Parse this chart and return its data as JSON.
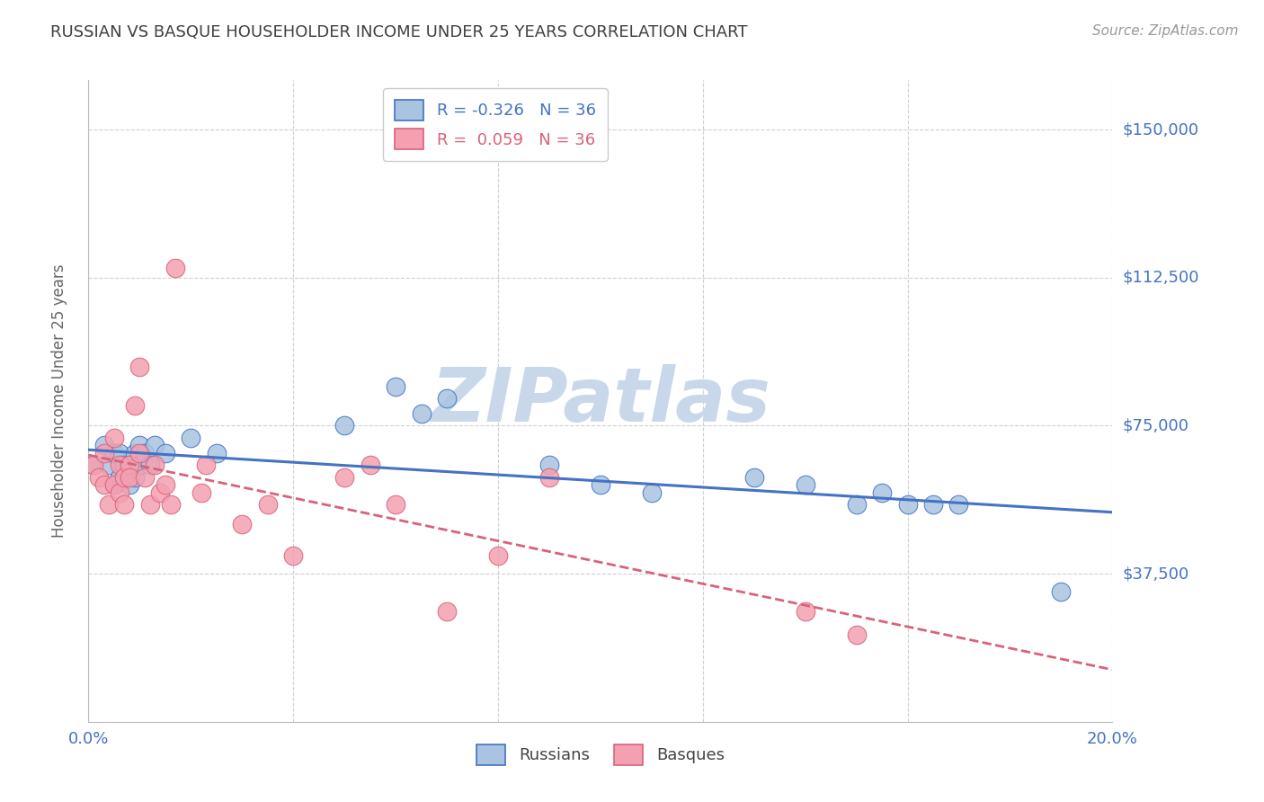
{
  "title": "RUSSIAN VS BASQUE HOUSEHOLDER INCOME UNDER 25 YEARS CORRELATION CHART",
  "source": "Source: ZipAtlas.com",
  "ylabel": "Householder Income Under 25 years",
  "xlim": [
    0.0,
    0.2
  ],
  "ylim": [
    0,
    162500
  ],
  "yticks": [
    37500,
    75000,
    112500,
    150000
  ],
  "ytick_labels": [
    "$37,500",
    "$75,000",
    "$112,500",
    "$150,000"
  ],
  "xticks": [
    0.0,
    0.04,
    0.08,
    0.12,
    0.16,
    0.2
  ],
  "xtick_labels": [
    "0.0%",
    "",
    "",
    "",
    "",
    "20.0%"
  ],
  "russian_R": "-0.326",
  "russian_N": "36",
  "basque_R": "0.059",
  "basque_N": "36",
  "russian_color": "#a8c4e0",
  "basque_color": "#f4a0b0",
  "russian_line_color": "#4472c4",
  "basque_line_color": "#d9627a",
  "watermark": "ZIPatlas",
  "watermark_color": "#c8d8ea",
  "title_color": "#404040",
  "axis_label_color": "#4472c4",
  "ylabel_color": "#666666",
  "russian_x": [
    0.001,
    0.003,
    0.004,
    0.005,
    0.005,
    0.006,
    0.006,
    0.007,
    0.007,
    0.008,
    0.008,
    0.009,
    0.009,
    0.01,
    0.01,
    0.011,
    0.012,
    0.013,
    0.015,
    0.02,
    0.025,
    0.05,
    0.06,
    0.065,
    0.07,
    0.09,
    0.1,
    0.11,
    0.13,
    0.14,
    0.15,
    0.155,
    0.16,
    0.165,
    0.17,
    0.19
  ],
  "russian_y": [
    65000,
    70000,
    65000,
    68000,
    60000,
    62000,
    68000,
    65000,
    62000,
    60000,
    65000,
    68000,
    62000,
    70000,
    65000,
    68000,
    65000,
    70000,
    68000,
    72000,
    68000,
    75000,
    85000,
    78000,
    82000,
    65000,
    60000,
    58000,
    62000,
    60000,
    55000,
    58000,
    55000,
    55000,
    55000,
    33000
  ],
  "basque_x": [
    0.001,
    0.002,
    0.003,
    0.003,
    0.004,
    0.005,
    0.005,
    0.006,
    0.006,
    0.007,
    0.007,
    0.008,
    0.008,
    0.009,
    0.01,
    0.01,
    0.011,
    0.012,
    0.013,
    0.014,
    0.015,
    0.016,
    0.017,
    0.022,
    0.023,
    0.03,
    0.035,
    0.04,
    0.05,
    0.055,
    0.06,
    0.07,
    0.08,
    0.09,
    0.14,
    0.15
  ],
  "basque_y": [
    65000,
    62000,
    68000,
    60000,
    55000,
    72000,
    60000,
    58000,
    65000,
    62000,
    55000,
    65000,
    62000,
    80000,
    90000,
    68000,
    62000,
    55000,
    65000,
    58000,
    60000,
    55000,
    115000,
    58000,
    65000,
    50000,
    55000,
    42000,
    62000,
    65000,
    55000,
    28000,
    42000,
    62000,
    28000,
    22000
  ]
}
